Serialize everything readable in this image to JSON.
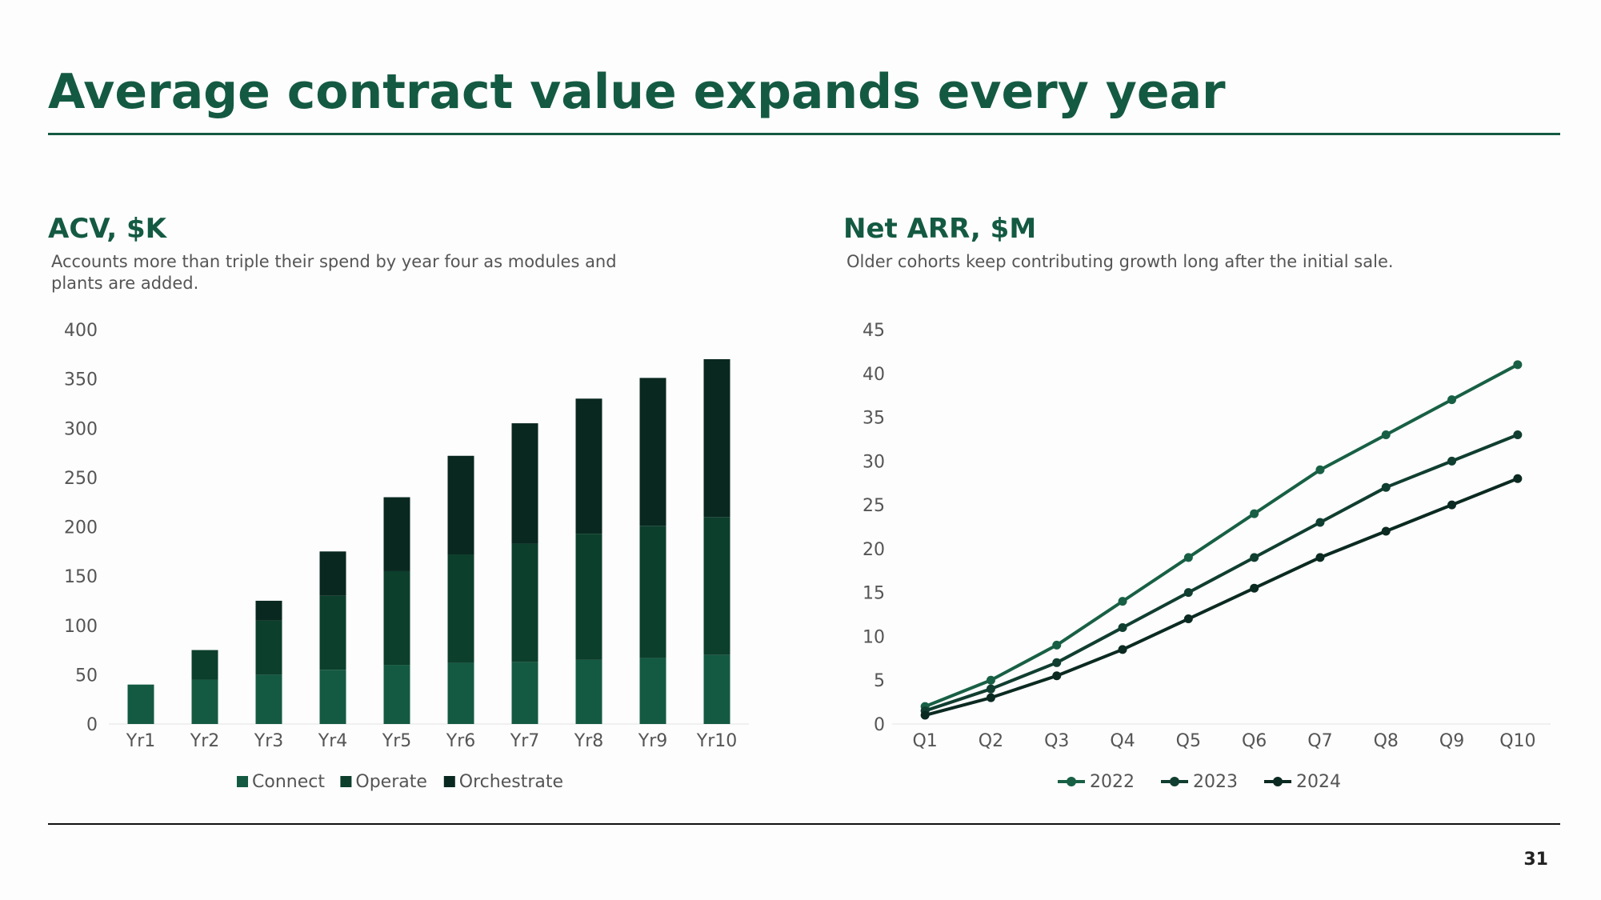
{
  "slide": {
    "title": "Average contract value expands every year",
    "page_number": "31"
  },
  "left": {
    "title": "ACV, $K",
    "subtitle": "Accounts more than triple their spend by year four as modules and plants are added."
  },
  "right": {
    "title": "Net ARR, $M",
    "subtitle": "Older cohorts keep contributing growth long after the initial sale."
  },
  "chart_data": [
    {
      "type": "bar",
      "stacked": true,
      "categories": [
        "Yr1",
        "Yr2",
        "Yr3",
        "Yr4",
        "Yr5",
        "Yr6",
        "Yr7",
        "Yr8",
        "Yr9",
        "Yr10"
      ],
      "series": [
        {
          "name": "Connect",
          "color": "#145a42",
          "values": [
            40,
            45,
            50,
            55,
            60,
            62,
            63,
            65,
            67,
            70
          ]
        },
        {
          "name": "Operate",
          "color": "#0d3f2d",
          "values": [
            0,
            30,
            55,
            75,
            95,
            110,
            120,
            128,
            134,
            140
          ]
        },
        {
          "name": "Orchestrate",
          "color": "#092820",
          "values": [
            0,
            0,
            20,
            45,
            75,
            100,
            122,
            137,
            150,
            160
          ]
        }
      ],
      "ylim": [
        0,
        400
      ],
      "yticks": [
        0,
        50,
        100,
        150,
        200,
        250,
        300,
        350,
        400
      ],
      "legend": "bottom"
    },
    {
      "type": "line",
      "categories": [
        "Q1",
        "Q2",
        "Q3",
        "Q4",
        "Q5",
        "Q6",
        "Q7",
        "Q8",
        "Q9",
        "Q10"
      ],
      "series": [
        {
          "name": "2022",
          "color": "#186045",
          "values": [
            2,
            5,
            9,
            14,
            19,
            24,
            29,
            33,
            37,
            41
          ]
        },
        {
          "name": "2023",
          "color": "#103e30",
          "values": [
            1.5,
            4,
            7,
            11,
            15,
            19,
            23,
            27,
            30,
            33
          ]
        },
        {
          "name": "2024",
          "color": "#0b2a21",
          "values": [
            1,
            3,
            5.5,
            8.5,
            12,
            15.5,
            19,
            22,
            25,
            28
          ]
        }
      ],
      "ylim": [
        0,
        45
      ],
      "yticks": [
        0,
        5,
        10,
        15,
        20,
        25,
        30,
        35,
        40,
        45
      ],
      "legend": "bottom"
    }
  ]
}
